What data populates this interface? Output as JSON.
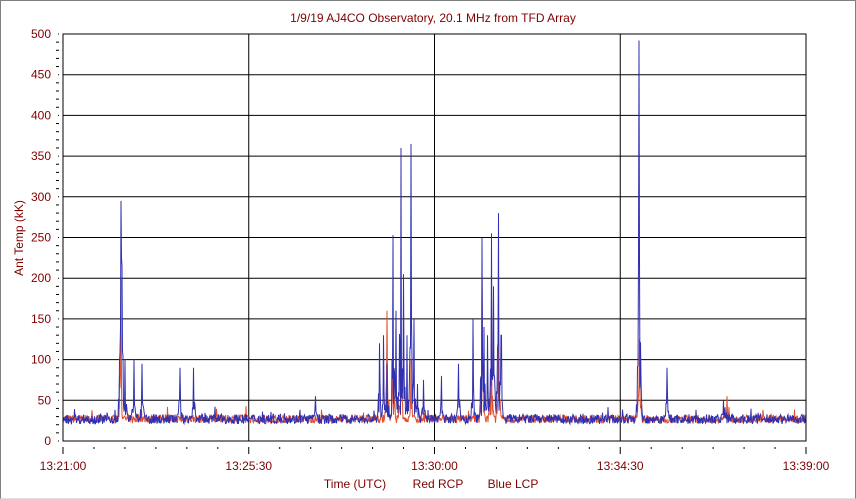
{
  "chart_data": {
    "type": "line",
    "title": "1/9/19 AJ4CO Observatory, 20.1 MHz from TFD Array",
    "ylabel": "Ant Temp (kK)",
    "xlabel": "Time (UTC)",
    "legend": [
      "Red RCP",
      "Blue LCP"
    ],
    "colors": {
      "red": "#e05030",
      "blue": "#3030b0",
      "grid": "#000000",
      "text": "#800000"
    },
    "ylim": [
      0,
      500
    ],
    "yticks": [
      0,
      50,
      100,
      150,
      200,
      250,
      300,
      350,
      400,
      450,
      500
    ],
    "xlim_seconds": [
      0,
      1080
    ],
    "xticks": [
      {
        "t": 0,
        "label": "13:21:00"
      },
      {
        "t": 270,
        "label": "13:25:30"
      },
      {
        "t": 540,
        "label": "13:30:00"
      },
      {
        "t": 810,
        "label": "13:34:30"
      },
      {
        "t": 1080,
        "label": "13:39:00"
      }
    ],
    "baseline_kK": 27,
    "series": [
      {
        "name": "Blue LCP",
        "peaks": [
          [
            84,
            295
          ],
          [
            85,
            225
          ],
          [
            86,
            215
          ],
          [
            90,
            100
          ],
          [
            103,
            100
          ],
          [
            115,
            95
          ],
          [
            170,
            90
          ],
          [
            190,
            90
          ],
          [
            367,
            55
          ],
          [
            460,
            120
          ],
          [
            466,
            130
          ],
          [
            471,
            95
          ],
          [
            480,
            253
          ],
          [
            484,
            160
          ],
          [
            491,
            360
          ],
          [
            495,
            205
          ],
          [
            500,
            130
          ],
          [
            506,
            365
          ],
          [
            510,
            150
          ],
          [
            515,
            70
          ],
          [
            524,
            75
          ],
          [
            550,
            80
          ],
          [
            575,
            95
          ],
          [
            596,
            150
          ],
          [
            609,
            250
          ],
          [
            612,
            140
          ],
          [
            617,
            130
          ],
          [
            623,
            255
          ],
          [
            626,
            190
          ],
          [
            633,
            280
          ],
          [
            637,
            130
          ],
          [
            837,
            492
          ],
          [
            838,
            220
          ],
          [
            878,
            90
          ],
          [
            960,
            50
          ]
        ]
      },
      {
        "name": "Red RCP",
        "peaks": [
          [
            84,
            200
          ],
          [
            471,
            160
          ],
          [
            480,
            120
          ],
          [
            491,
            130
          ],
          [
            506,
            100
          ],
          [
            609,
            200
          ],
          [
            623,
            180
          ],
          [
            633,
            140
          ],
          [
            838,
            125
          ],
          [
            965,
            55
          ]
        ]
      }
    ]
  }
}
